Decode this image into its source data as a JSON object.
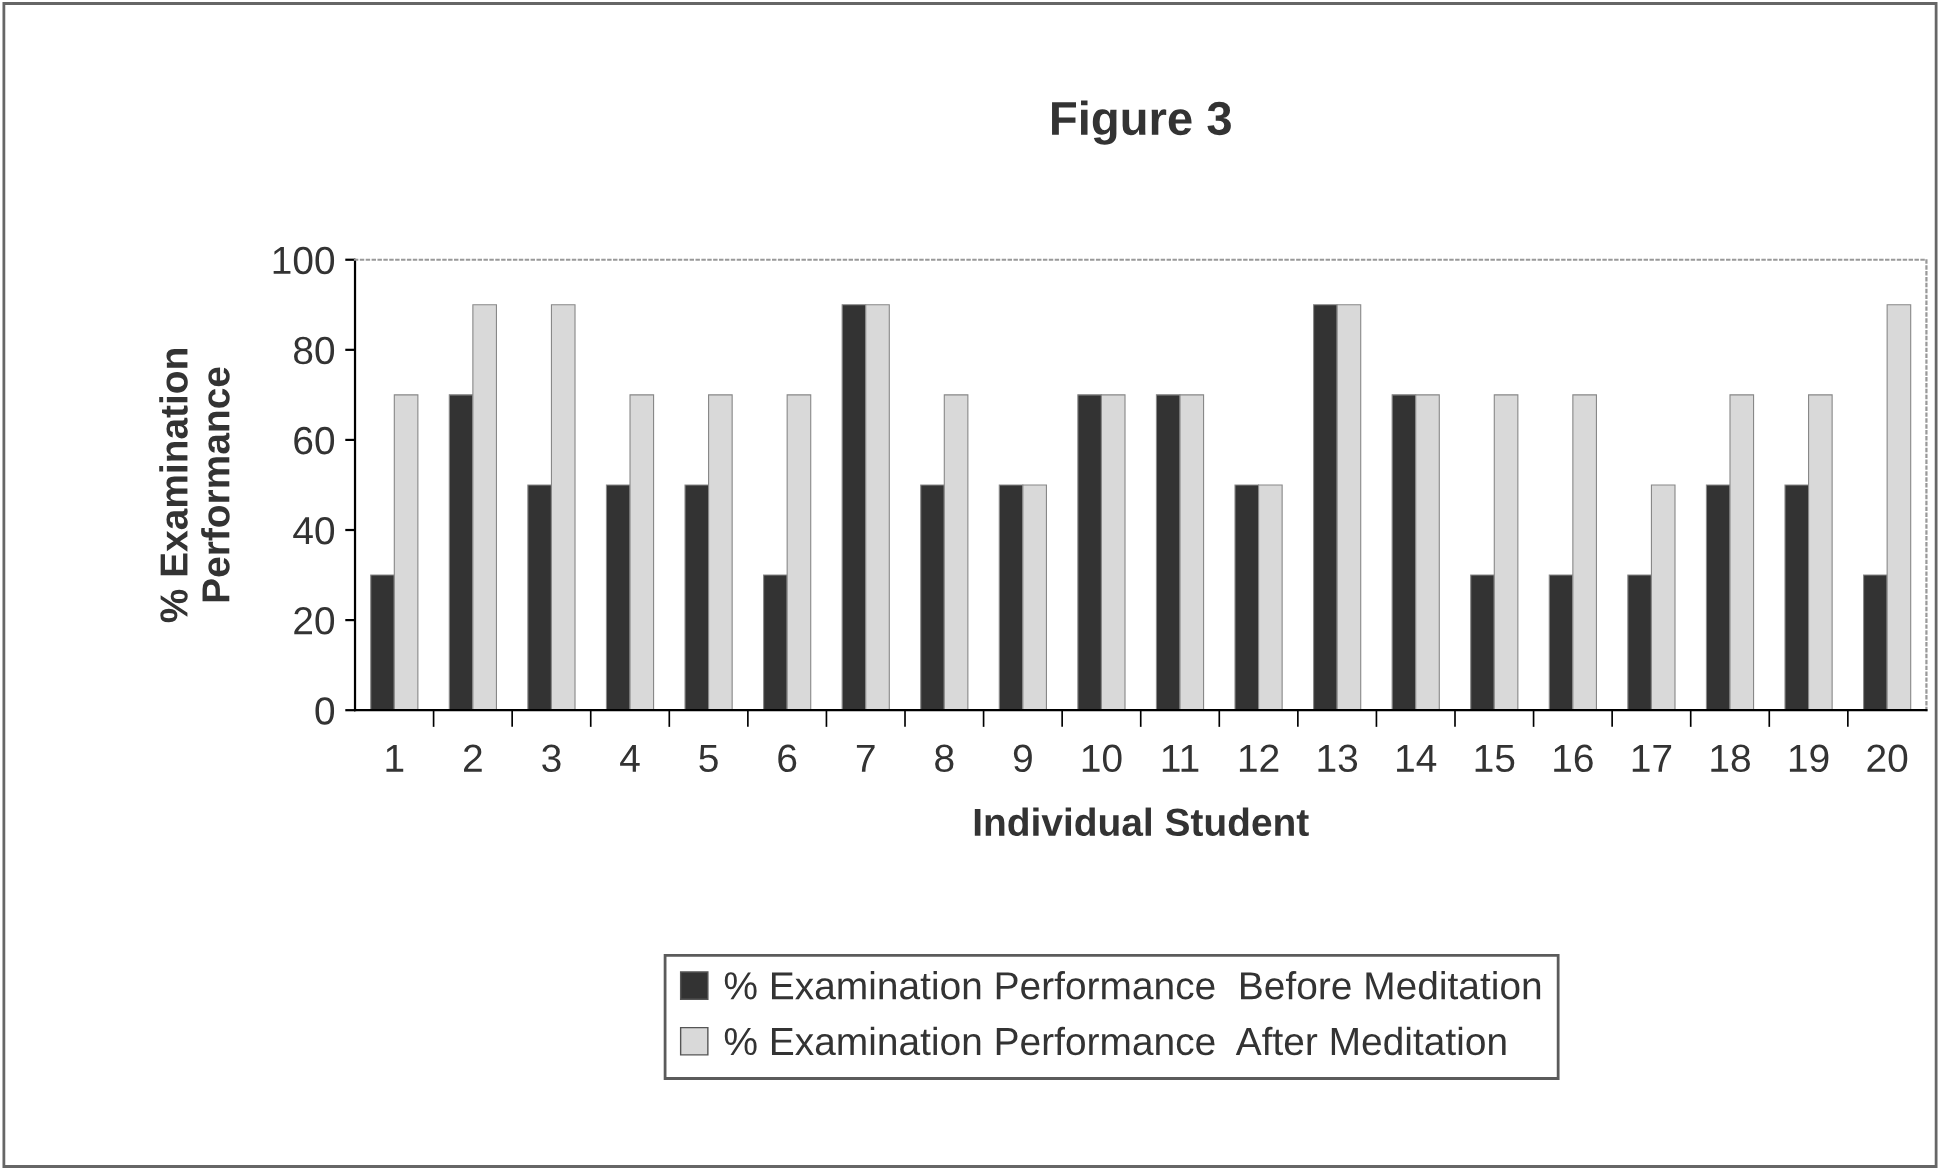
{
  "chart_data": {
    "type": "bar",
    "title": "Figure 3",
    "xlabel": "Individual Student",
    "ylabel": "% Examination\nPerformance",
    "categories": [
      "1",
      "2",
      "3",
      "4",
      "5",
      "6",
      "7",
      "8",
      "9",
      "10",
      "11",
      "12",
      "13",
      "14",
      "15",
      "16",
      "17",
      "18",
      "19",
      "20"
    ],
    "series": [
      {
        "name": "% Examination Performance  Before Meditation",
        "color": "#333333",
        "values": [
          30,
          70,
          50,
          50,
          50,
          30,
          90,
          50,
          50,
          70,
          70,
          50,
          90,
          70,
          30,
          30,
          30,
          50,
          50,
          30
        ]
      },
      {
        "name": "% Examination Performance  After Meditation",
        "color": "#d9d9d9",
        "values": [
          70,
          90,
          90,
          70,
          70,
          70,
          90,
          70,
          50,
          70,
          70,
          50,
          90,
          70,
          70,
          70,
          50,
          70,
          70,
          90
        ]
      }
    ],
    "ylim": [
      0,
      100
    ],
    "yticks": [
      0,
      20,
      40,
      60,
      80,
      100
    ],
    "grid": false,
    "legend": "bottom"
  }
}
